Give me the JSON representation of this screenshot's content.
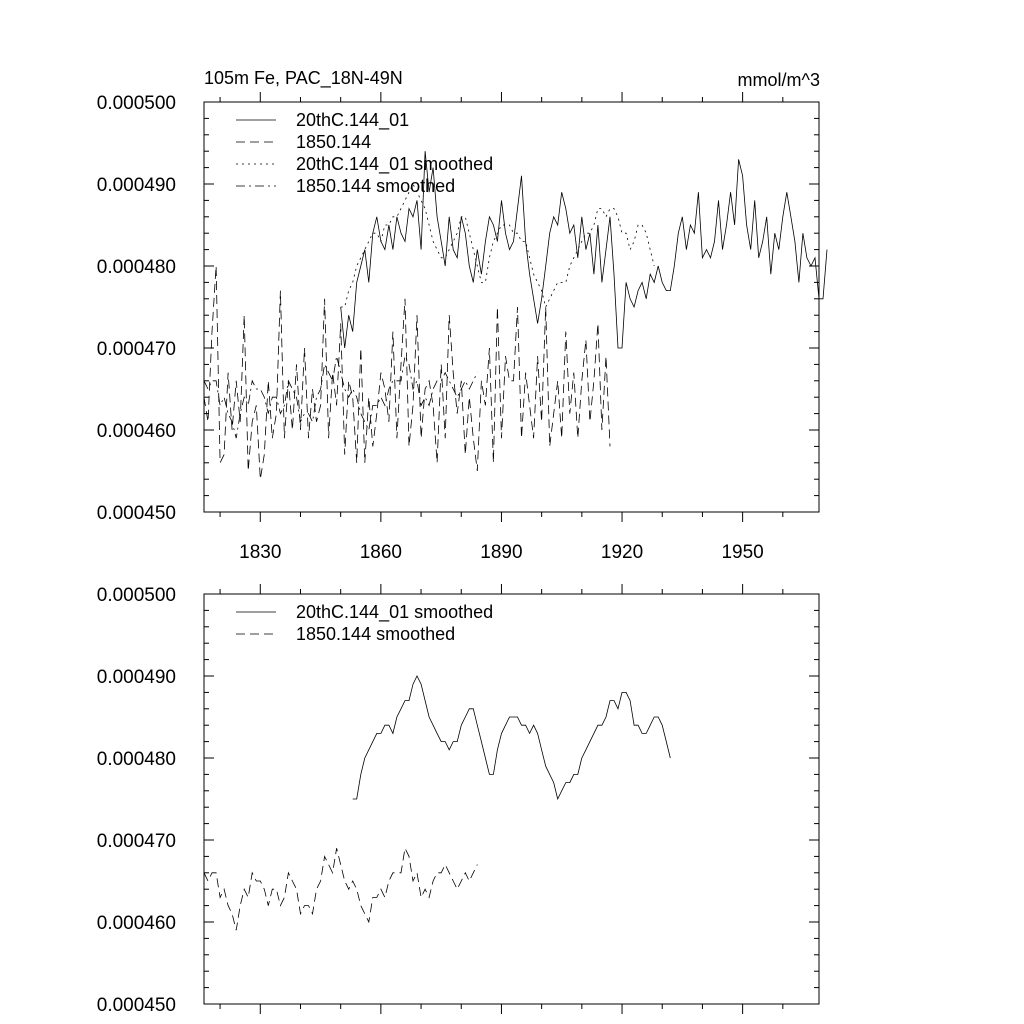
{
  "chart_data": [
    {
      "type": "line",
      "title": "105m Fe, PAC_18N-49N",
      "units": "mmol/m^3",
      "xlim": [
        1816,
        1969
      ],
      "ylim": [
        0.00045,
        0.0005
      ],
      "xticks": [
        1830,
        1860,
        1890,
        1920,
        1950
      ],
      "xtick_labels": [
        "1830",
        "1860",
        "1890",
        "1920",
        "1950"
      ],
      "yticks": [
        0.00045,
        0.00046,
        0.00047,
        0.00048,
        0.00049,
        0.0005
      ],
      "ytick_labels": [
        "0.000450",
        "0.000460",
        "0.000470",
        "0.000480",
        "0.000490",
        "0.000500"
      ],
      "legend_position": "top-left",
      "series": [
        {
          "name": "20thC.144_01",
          "style": "solid",
          "x_start": 1850,
          "values": [
            0.000475,
            0.00047,
            0.000474,
            0.000472,
            0.000478,
            0.00048,
            0.000482,
            0.000478,
            0.000484,
            0.000486,
            0.000483,
            0.000482,
            0.000485,
            0.000482,
            0.000486,
            0.000484,
            0.000483,
            0.000487,
            0.000486,
            0.000488,
            0.000482,
            0.000494,
            0.000489,
            0.000492,
            0.000486,
            0.000483,
            0.00048,
            0.000486,
            0.000482,
            0.000481,
            0.000486,
            0.000484,
            0.00048,
            0.000478,
            0.000482,
            0.000479,
            0.000483,
            0.000486,
            0.000485,
            0.000483,
            0.000488,
            0.000484,
            0.000482,
            0.000483,
            0.000487,
            0.000491,
            0.000483,
            0.000479,
            0.000476,
            0.000473,
            0.000476,
            0.00048,
            0.000484,
            0.000486,
            0.000485,
            0.000489,
            0.000487,
            0.000484,
            0.000485,
            0.000481,
            0.000486,
            0.000482,
            0.000484,
            0.000479,
            0.000485,
            0.000478,
            0.000482,
            0.000486,
            0.000479,
            0.00047,
            0.00047,
            0.000478,
            0.000476,
            0.000475,
            0.000477,
            0.000478,
            0.000476,
            0.000479,
            0.000478,
            0.00048,
            0.000478,
            0.000477,
            0.000477,
            0.00048,
            0.000484,
            0.000486,
            0.000482,
            0.000485,
            0.000484,
            0.000489,
            0.000481,
            0.000482,
            0.000481,
            0.000483,
            0.000488,
            0.000482,
            0.000485,
            0.000489,
            0.000485,
            0.000493,
            0.000491,
            0.000485,
            0.000482,
            0.000488,
            0.000481,
            0.000483,
            0.000486,
            0.000479,
            0.000484,
            0.000482,
            0.000486,
            0.000489,
            0.000486,
            0.000483,
            0.000478,
            0.000484,
            0.000481,
            0.00048,
            0.000481,
            0.000476,
            0.000476,
            0.000482
          ]
        },
        {
          "name": "1850.144",
          "style": "dashed",
          "x_start": 1816,
          "values": [
            0.000464,
            0.000461,
            0.000472,
            0.00048,
            0.000456,
            0.000457,
            0.000467,
            0.00046,
            0.000466,
            0.000461,
            0.000474,
            0.000455,
            0.000461,
            0.000463,
            0.000454,
            0.000457,
            0.000466,
            0.000459,
            0.000462,
            0.000477,
            0.000459,
            0.000466,
            0.00046,
            0.000468,
            0.00046,
            0.00047,
            0.000459,
            0.000465,
            0.000461,
            0.000463,
            0.000476,
            0.000459,
            0.000467,
            0.000463,
            0.000473,
            0.000457,
            0.000466,
            0.000464,
            0.000456,
            0.00047,
            0.000456,
            0.000464,
            0.000458,
            0.000462,
            0.000467,
            0.000465,
            0.000461,
            0.000472,
            0.000459,
            0.000468,
            0.000476,
            0.000458,
            0.000463,
            0.000474,
            0.000459,
            0.000465,
            0.000466,
            0.000463,
            0.000456,
            0.000468,
            0.000459,
            0.000474,
            0.000467,
            0.000462,
            0.000466,
            0.000457,
            0.000464,
            0.000459,
            0.000455,
            0.000466,
            0.000463,
            0.00047,
            0.000456,
            0.000475,
            0.000459,
            0.000469,
            0.000466,
            0.000466,
            0.000475,
            0.000459,
            0.000467,
            0.000463,
            0.000459,
            0.000469,
            0.000461,
            0.000475,
            0.000458,
            0.000462,
            0.000466,
            0.000459,
            0.000472,
            0.000462,
            0.000467,
            0.000459,
            0.000466,
            0.000471,
            0.000461,
            0.000466,
            0.000473,
            0.00046,
            0.000469,
            0.000458
          ]
        },
        {
          "name": "20thC.144_01 smoothed",
          "style": "dotted",
          "x_start": 1850,
          "values": [
            0.000475,
            0.000475,
            0.000477,
            0.000478,
            0.00048,
            0.000481,
            0.000482,
            0.000483,
            0.000484,
            0.000484,
            0.000483,
            0.000485,
            0.000485,
            0.000486,
            0.000486,
            0.000487,
            0.000488,
            0.000489,
            0.00049,
            0.000489,
            0.000488,
            0.000487,
            0.000485,
            0.000483,
            0.000482,
            0.000481,
            0.000481,
            0.000482,
            0.000483,
            0.000484,
            0.000486,
            0.000486,
            0.000484,
            0.000482,
            0.00048,
            0.000478,
            0.000478,
            0.000481,
            0.000483,
            0.000484,
            0.000485,
            0.000485,
            0.000485,
            0.000484,
            0.000484,
            0.000483,
            0.000483,
            0.000481,
            0.000479,
            0.000478,
            0.000477,
            0.000475,
            0.000476,
            0.000477,
            0.000478,
            0.000478,
            0.000478,
            0.00048,
            0.000481,
            0.000482,
            0.000483,
            0.000484,
            0.000484,
            0.000485,
            0.000487,
            0.000487,
            0.000486,
            0.000487,
            0.000487,
            0.000486,
            0.000484,
            0.000484,
            0.000482,
            0.000483,
            0.000485,
            0.000485,
            0.000484,
            0.000482,
            0.00048
          ]
        },
        {
          "name": "1850.144 smoothed",
          "style": "dash-dot",
          "x_start": 1816,
          "values": [
            0.000466,
            0.000465,
            0.000466,
            0.000466,
            0.000463,
            0.000464,
            0.000462,
            0.000461,
            0.000459,
            0.000462,
            0.000464,
            0.000463,
            0.000466,
            0.000465,
            0.000465,
            0.000464,
            0.000462,
            0.000464,
            0.000464,
            0.000462,
            0.000463,
            0.000466,
            0.000465,
            0.000464,
            0.000461,
            0.000462,
            0.000462,
            0.000461,
            0.000464,
            0.000465,
            0.000468,
            0.000467,
            0.000466,
            0.000469,
            0.000467,
            0.000465,
            0.000464,
            0.000465,
            0.000464,
            0.000462,
            0.000461,
            0.00046,
            0.000463,
            0.000463,
            0.000464,
            0.000463,
            0.000465,
            0.000466,
            0.000466,
            0.000466,
            0.000469,
            0.000468,
            0.000465,
            0.000466,
            0.000463,
            0.000464,
            0.000463,
            0.000465,
            0.000466,
            0.000466,
            0.000467,
            0.000466,
            0.000465,
            0.000464,
            0.000465,
            0.000466,
            0.000465,
            0.000466,
            0.000467
          ]
        }
      ]
    },
    {
      "type": "line",
      "title": "",
      "xlim": [
        1816,
        1969
      ],
      "ylim": [
        0.00045,
        0.0005
      ],
      "xticks": [
        1830,
        1860,
        1890,
        1920,
        1950
      ],
      "yticks": [
        0.00045,
        0.00046,
        0.00047,
        0.00048,
        0.00049,
        0.0005
      ],
      "ytick_labels": [
        "0.000450",
        "0.000460",
        "0.000470",
        "0.000480",
        "0.000490",
        "0.000500"
      ],
      "legend_position": "top-left",
      "series": [
        {
          "name": "20thC.144_01 smoothed",
          "style": "solid",
          "x_start": 1853,
          "values": [
            0.000475,
            0.000475,
            0.000478,
            0.00048,
            0.000481,
            0.000482,
            0.000483,
            0.000483,
            0.000484,
            0.000484,
            0.000483,
            0.000485,
            0.000486,
            0.000487,
            0.000487,
            0.000489,
            0.00049,
            0.000489,
            0.000487,
            0.000485,
            0.000484,
            0.000483,
            0.000482,
            0.000482,
            0.000481,
            0.000482,
            0.000482,
            0.000484,
            0.000485,
            0.000486,
            0.000486,
            0.000484,
            0.000482,
            0.00048,
            0.000478,
            0.000478,
            0.000481,
            0.000483,
            0.000484,
            0.000485,
            0.000485,
            0.000485,
            0.000484,
            0.000484,
            0.000483,
            0.000484,
            0.000483,
            0.000481,
            0.000479,
            0.000478,
            0.000477,
            0.000475,
            0.000476,
            0.000477,
            0.000477,
            0.000478,
            0.000478,
            0.00048,
            0.000481,
            0.000482,
            0.000483,
            0.000484,
            0.000484,
            0.000485,
            0.000487,
            0.000487,
            0.000486,
            0.000488,
            0.000488,
            0.000487,
            0.000484,
            0.000484,
            0.000483,
            0.000483,
            0.000484,
            0.000485,
            0.000485,
            0.000484,
            0.000482,
            0.00048
          ]
        },
        {
          "name": "1850.144 smoothed",
          "style": "dashed",
          "x_start": 1816,
          "values": [
            0.000466,
            0.000465,
            0.000466,
            0.000466,
            0.000463,
            0.000464,
            0.000462,
            0.000461,
            0.000459,
            0.000462,
            0.000464,
            0.000463,
            0.000466,
            0.000465,
            0.000465,
            0.000464,
            0.000462,
            0.000464,
            0.000464,
            0.000462,
            0.000463,
            0.000466,
            0.000465,
            0.000464,
            0.000461,
            0.000462,
            0.000462,
            0.000461,
            0.000464,
            0.000465,
            0.000468,
            0.000467,
            0.000466,
            0.000469,
            0.000467,
            0.000465,
            0.000464,
            0.000465,
            0.000464,
            0.000462,
            0.000461,
            0.00046,
            0.000463,
            0.000463,
            0.000464,
            0.000463,
            0.000465,
            0.000466,
            0.000466,
            0.000466,
            0.000469,
            0.000468,
            0.000465,
            0.000466,
            0.000463,
            0.000464,
            0.000463,
            0.000465,
            0.000466,
            0.000466,
            0.000467,
            0.000466,
            0.000465,
            0.000464,
            0.000465,
            0.000466,
            0.000465,
            0.000466,
            0.000467
          ]
        }
      ]
    }
  ]
}
